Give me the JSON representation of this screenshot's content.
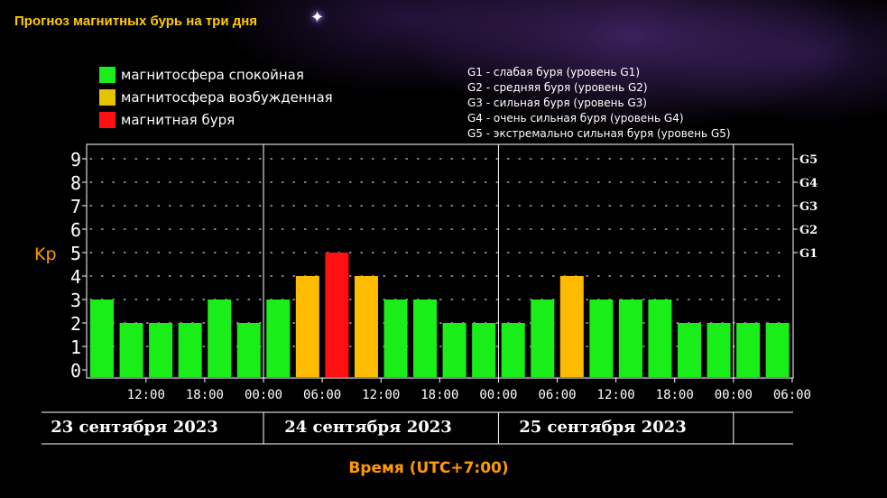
{
  "page": {
    "title": "Прогноз магнитных бурь на три дня"
  },
  "legend": [
    {
      "label": "магнитосфера спокойная",
      "color": "#19ee19"
    },
    {
      "label": "магнитосфера возбужденная",
      "color": "#e6c200"
    },
    {
      "label": "магнитная буря",
      "color": "#ff1010"
    }
  ],
  "levels": [
    "G1 - слабая буря (уровень G1)",
    "G2 - средняя буря (уровень G2)",
    "G3 - сильная буря (уровень G3)",
    "G4 - очень сильная буря (уровень G4)",
    "G5 - экстремально сильная буря (уровень G5)"
  ],
  "colors": {
    "quiet": "#19ee19",
    "active": "#ffbb00",
    "storm": "#ff1010",
    "axis_label": "#ff9900",
    "title": "#ffcc00"
  },
  "chart_data": {
    "type": "bar",
    "ylabel": "Kp",
    "xlabel": "Время (UTC+7:00)",
    "ylim": [
      0,
      9
    ],
    "yticks": [
      "0",
      "1",
      "2",
      "3",
      "4",
      "5",
      "6",
      "7",
      "8",
      "9"
    ],
    "right_ticks": [
      {
        "label": "G1",
        "value": 5
      },
      {
        "label": "G2",
        "value": 6
      },
      {
        "label": "G3",
        "value": 7
      },
      {
        "label": "G4",
        "value": 8
      },
      {
        "label": "G5",
        "value": 9
      }
    ],
    "values": [
      3,
      2,
      2,
      2,
      3,
      2,
      3,
      4,
      5,
      4,
      3,
      3,
      2,
      2,
      2,
      3,
      4,
      3,
      3,
      3,
      2,
      2,
      2,
      2
    ],
    "x_tick_labels": [
      "12:00",
      "18:00",
      "00:00",
      "06:00",
      "12:00",
      "18:00",
      "00:00",
      "06:00",
      "12:00",
      "18:00",
      "00:00",
      "06:00"
    ],
    "x_tick_bar_index": [
      2,
      4,
      6,
      8,
      10,
      12,
      14,
      16,
      18,
      20,
      22,
      24
    ],
    "day_separator_bar_index": [
      6,
      14,
      22
    ],
    "days": [
      "23 сентября 2023",
      "24 сентября 2023",
      "25 сентября 2023"
    ],
    "grid": true
  }
}
